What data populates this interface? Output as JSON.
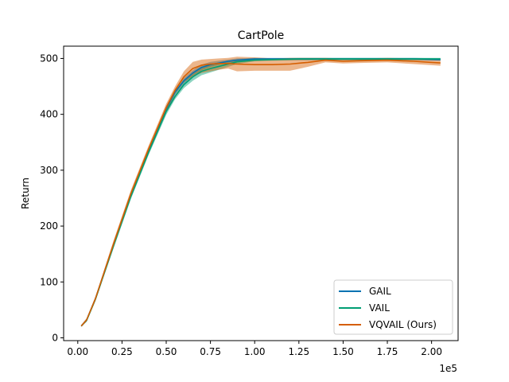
{
  "chart_data": {
    "type": "line",
    "title": "CartPole",
    "xlabel": "",
    "ylabel": "Return",
    "x_offset_label": "1e5",
    "xlim": [
      -0.08,
      2.15
    ],
    "ylim": [
      -5,
      522
    ],
    "xticks": [
      0.0,
      0.25,
      0.5,
      0.75,
      1.0,
      1.25,
      1.5,
      1.75,
      2.0
    ],
    "xtick_labels": [
      "0.00",
      "0.25",
      "0.50",
      "0.75",
      "1.00",
      "1.25",
      "1.50",
      "1.75",
      "2.00"
    ],
    "yticks": [
      0,
      100,
      200,
      300,
      400,
      500
    ],
    "ytick_labels": [
      "0",
      "100",
      "200",
      "300",
      "400",
      "500"
    ],
    "legend_position": "lower-right",
    "grid": false,
    "series": [
      {
        "name": "GAIL",
        "color": "#0072b2",
        "x": [
          0.02,
          0.05,
          0.1,
          0.2,
          0.3,
          0.4,
          0.5,
          0.55,
          0.6,
          0.65,
          0.7,
          0.75,
          0.8,
          0.85,
          0.9,
          1.0,
          1.1,
          1.25,
          1.4,
          1.5,
          1.6,
          1.75,
          1.9,
          2.05
        ],
        "y": [
          21,
          32,
          70,
          165,
          256,
          335,
          410,
          440,
          460,
          474,
          484,
          489,
          492,
          495,
          497,
          499,
          499,
          499,
          499,
          499,
          499,
          499,
          499,
          498
        ],
        "lower": [
          20,
          30,
          67,
          160,
          251,
          330,
          404,
          435,
          455,
          469,
          479,
          485,
          489,
          492,
          494,
          497,
          497,
          497,
          497,
          497,
          497,
          497,
          497,
          496
        ],
        "upper": [
          23,
          34,
          73,
          170,
          261,
          340,
          415,
          445,
          465,
          479,
          489,
          494,
          496,
          498,
          500,
          501,
          501,
          501,
          501,
          501,
          501,
          501,
          501,
          500
        ]
      },
      {
        "name": "VAIL",
        "color": "#009e73",
        "x": [
          0.02,
          0.05,
          0.1,
          0.2,
          0.3,
          0.4,
          0.5,
          0.55,
          0.6,
          0.65,
          0.7,
          0.75,
          0.8,
          0.85,
          0.9,
          1.0,
          1.1,
          1.25,
          1.4,
          1.5,
          1.6,
          1.75,
          1.9,
          2.05
        ],
        "y": [
          21,
          31,
          69,
          163,
          253,
          332,
          405,
          432,
          453,
          467,
          477,
          482,
          486,
          490,
          494,
          497,
          498,
          499,
          499,
          499,
          499,
          499,
          499,
          499
        ],
        "lower": [
          20,
          29,
          66,
          158,
          248,
          327,
          399,
          427,
          447,
          460,
          470,
          475,
          480,
          485,
          490,
          495,
          496,
          497,
          497,
          497,
          497,
          497,
          497,
          497
        ],
        "upper": [
          23,
          33,
          72,
          168,
          258,
          337,
          410,
          437,
          458,
          473,
          483,
          488,
          492,
          495,
          498,
          500,
          500,
          501,
          501,
          501,
          501,
          501,
          501,
          501
        ]
      },
      {
        "name": "VQVAIL (Ours)",
        "color": "#d55e00",
        "x": [
          0.02,
          0.05,
          0.1,
          0.2,
          0.3,
          0.4,
          0.5,
          0.55,
          0.6,
          0.65,
          0.7,
          0.75,
          0.8,
          0.85,
          0.9,
          1.0,
          1.1,
          1.2,
          1.3,
          1.4,
          1.5,
          1.6,
          1.75,
          1.9,
          2.0,
          2.05
        ],
        "y": [
          21,
          32,
          70,
          166,
          258,
          338,
          412,
          443,
          467,
          482,
          488,
          490,
          491,
          491,
          490,
          489,
          489,
          490,
          493,
          497,
          495,
          496,
          497,
          495,
          493,
          492
        ],
        "lower": [
          20,
          29,
          66,
          160,
          252,
          332,
          405,
          436,
          457,
          468,
          474,
          477,
          480,
          482,
          477,
          478,
          478,
          478,
          485,
          493,
          491,
          492,
          493,
          490,
          488,
          487
        ],
        "upper": [
          23,
          35,
          74,
          172,
          264,
          344,
          419,
          450,
          477,
          494,
          498,
          499,
          500,
          501,
          503,
          502,
          500,
          501,
          501,
          501,
          500,
          500,
          501,
          500,
          499,
          498
        ]
      }
    ]
  }
}
